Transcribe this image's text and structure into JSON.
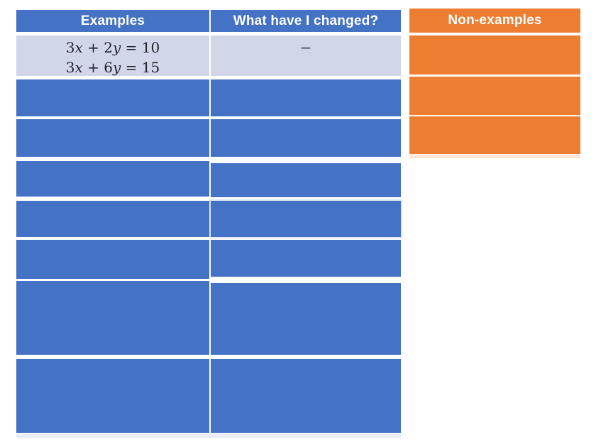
{
  "examples_table": {
    "headers": [
      {
        "label": "Examples"
      },
      {
        "label": "What have I changed?"
      }
    ],
    "first_row": {
      "equations": [
        {
          "segments": [
            {
              "text": "3"
            },
            {
              "text": "x",
              "italic": true
            },
            {
              "text": " + 2"
            },
            {
              "text": "y",
              "italic": true
            },
            {
              "text": " = 10"
            }
          ]
        },
        {
          "segments": [
            {
              "text": "3"
            },
            {
              "text": "x",
              "italic": true
            },
            {
              "text": " + 6"
            },
            {
              "text": "y",
              "italic": true
            },
            {
              "text": " = 15"
            }
          ]
        }
      ],
      "changed_label": "−"
    },
    "empty_row_count": 7
  },
  "non_examples_table": {
    "header_label": "Non-examples",
    "empty_row_count": 3
  },
  "colors": {
    "table_blue": "#4472C4",
    "highlight_row": "#D1D7E8",
    "table_orange": "#ED7D31",
    "header_text": "#FFFFFF",
    "equation_text": "#1E222B",
    "left_table_bottom_strip": "#E9EBF5",
    "orange_table_bottom_strip": "#FBE5D6"
  }
}
